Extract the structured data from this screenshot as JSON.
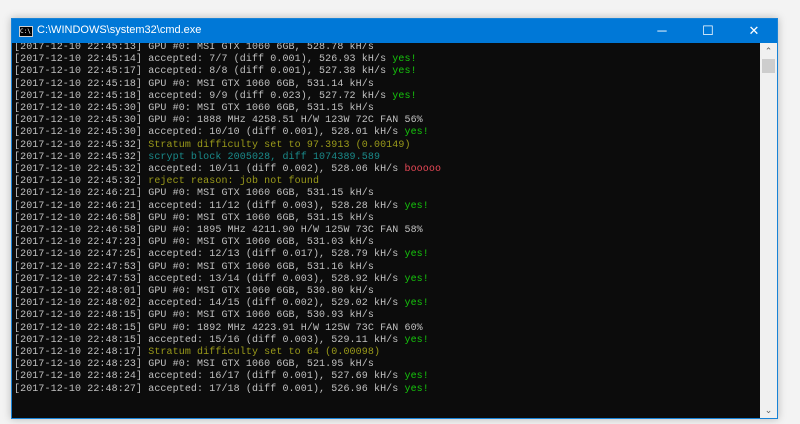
{
  "window": {
    "title": "C:\\WINDOWS\\system32\\cmd.exe",
    "icon": "cmd-icon",
    "controls": {
      "minimize": "─",
      "maximize": "☐",
      "close": "✕"
    }
  },
  "colors": {
    "default": "#c0c0c0",
    "green": "#16c60c",
    "yellow": "#9a9a1a",
    "cyan": "#1a8a8a",
    "red": "#e74856",
    "titlebar": "#0078d7"
  },
  "lines": [
    {
      "ts": "[2017-12-10 22:45:13]",
      "text": " GPU #0: MSI GTX 1060 6GB, 528.78 kH/s",
      "color": "default",
      "suffix": ""
    },
    {
      "ts": "[2017-12-10 22:45:14]",
      "text": " accepted: 7/7 (diff 0.001), 526.93 kH/s ",
      "color": "default",
      "suffix": "yes!",
      "suffix_color": "green"
    },
    {
      "ts": "[2017-12-10 22:45:17]",
      "text": " accepted: 8/8 (diff 0.001), 527.38 kH/s ",
      "color": "default",
      "suffix": "yes!",
      "suffix_color": "green"
    },
    {
      "ts": "[2017-12-10 22:45:18]",
      "text": " GPU #0: MSI GTX 1060 6GB, 531.14 kH/s",
      "color": "default",
      "suffix": ""
    },
    {
      "ts": "[2017-12-10 22:45:18]",
      "text": " accepted: 9/9 (diff 0.023), 527.72 kH/s ",
      "color": "default",
      "suffix": "yes!",
      "suffix_color": "green"
    },
    {
      "ts": "[2017-12-10 22:45:30]",
      "text": " GPU #0: MSI GTX 1060 6GB, 531.15 kH/s",
      "color": "default",
      "suffix": ""
    },
    {
      "ts": "[2017-12-10 22:45:30]",
      "text": " GPU #0: 1888 MHz 4258.51 H/W 123W 72C FAN 56%",
      "color": "default",
      "suffix": ""
    },
    {
      "ts": "[2017-12-10 22:45:30]",
      "text": " accepted: 10/10 (diff 0.001), 528.01 kH/s ",
      "color": "default",
      "suffix": "yes!",
      "suffix_color": "green"
    },
    {
      "ts": "[2017-12-10 22:45:32]",
      "text": " Stratum difficulty set to 97.3913 (0.00149)",
      "color": "yellow",
      "suffix": ""
    },
    {
      "ts": "[2017-12-10 22:45:32]",
      "text": " scrypt block 2005028, diff 1074389.589",
      "color": "cyan",
      "suffix": ""
    },
    {
      "ts": "[2017-12-10 22:45:32]",
      "text": " accepted: 10/11 (diff 0.002), 528.06 kH/s ",
      "color": "default",
      "suffix": "booooo",
      "suffix_color": "red"
    },
    {
      "ts": "[2017-12-10 22:45:32]",
      "text": " reject reason: job not found",
      "color": "yellow",
      "suffix": ""
    },
    {
      "ts": "[2017-12-10 22:46:21]",
      "text": " GPU #0: MSI GTX 1060 6GB, 531.15 kH/s",
      "color": "default",
      "suffix": ""
    },
    {
      "ts": "[2017-12-10 22:46:21]",
      "text": " accepted: 11/12 (diff 0.003), 528.28 kH/s ",
      "color": "default",
      "suffix": "yes!",
      "suffix_color": "green"
    },
    {
      "ts": "[2017-12-10 22:46:58]",
      "text": " GPU #0: MSI GTX 1060 6GB, 531.15 kH/s",
      "color": "default",
      "suffix": ""
    },
    {
      "ts": "[2017-12-10 22:46:58]",
      "text": " GPU #0: 1895 MHz 4211.90 H/W 125W 73C FAN 58%",
      "color": "default",
      "suffix": ""
    },
    {
      "ts": "[2017-12-10 22:47:23]",
      "text": " GPU #0: MSI GTX 1060 6GB, 531.03 kH/s",
      "color": "default",
      "suffix": ""
    },
    {
      "ts": "[2017-12-10 22:47:25]",
      "text": " accepted: 12/13 (diff 0.017), 528.79 kH/s ",
      "color": "default",
      "suffix": "yes!",
      "suffix_color": "green"
    },
    {
      "ts": "[2017-12-10 22:47:53]",
      "text": " GPU #0: MSI GTX 1060 6GB, 531.16 kH/s",
      "color": "default",
      "suffix": ""
    },
    {
      "ts": "[2017-12-10 22:47:53]",
      "text": " accepted: 13/14 (diff 0.003), 528.92 kH/s ",
      "color": "default",
      "suffix": "yes!",
      "suffix_color": "green"
    },
    {
      "ts": "[2017-12-10 22:48:01]",
      "text": " GPU #0: MSI GTX 1060 6GB, 530.80 kH/s",
      "color": "default",
      "suffix": ""
    },
    {
      "ts": "[2017-12-10 22:48:02]",
      "text": " accepted: 14/15 (diff 0.002), 529.02 kH/s ",
      "color": "default",
      "suffix": "yes!",
      "suffix_color": "green"
    },
    {
      "ts": "[2017-12-10 22:48:15]",
      "text": " GPU #0: MSI GTX 1060 6GB, 530.93 kH/s",
      "color": "default",
      "suffix": ""
    },
    {
      "ts": "[2017-12-10 22:48:15]",
      "text": " GPU #0: 1892 MHz 4223.91 H/W 125W 73C FAN 60%",
      "color": "default",
      "suffix": ""
    },
    {
      "ts": "[2017-12-10 22:48:15]",
      "text": " accepted: 15/16 (diff 0.003), 529.11 kH/s ",
      "color": "default",
      "suffix": "yes!",
      "suffix_color": "green"
    },
    {
      "ts": "[2017-12-10 22:48:17]",
      "text": " Stratum difficulty set to 64 (0.00098)",
      "color": "yellow",
      "suffix": ""
    },
    {
      "ts": "[2017-12-10 22:48:23]",
      "text": " GPU #0: MSI GTX 1060 6GB, 521.95 kH/s",
      "color": "default",
      "suffix": ""
    },
    {
      "ts": "[2017-12-10 22:48:24]",
      "text": " accepted: 16/17 (diff 0.001), 527.69 kH/s ",
      "color": "default",
      "suffix": "yes!",
      "suffix_color": "green"
    },
    {
      "ts": "[2017-12-10 22:48:27]",
      "text": " accepted: 17/18 (diff 0.001), 526.96 kH/s ",
      "color": "default",
      "suffix": "yes!",
      "suffix_color": "green"
    }
  ],
  "scrollbar": {
    "up": "⌃",
    "down": "⌄"
  }
}
